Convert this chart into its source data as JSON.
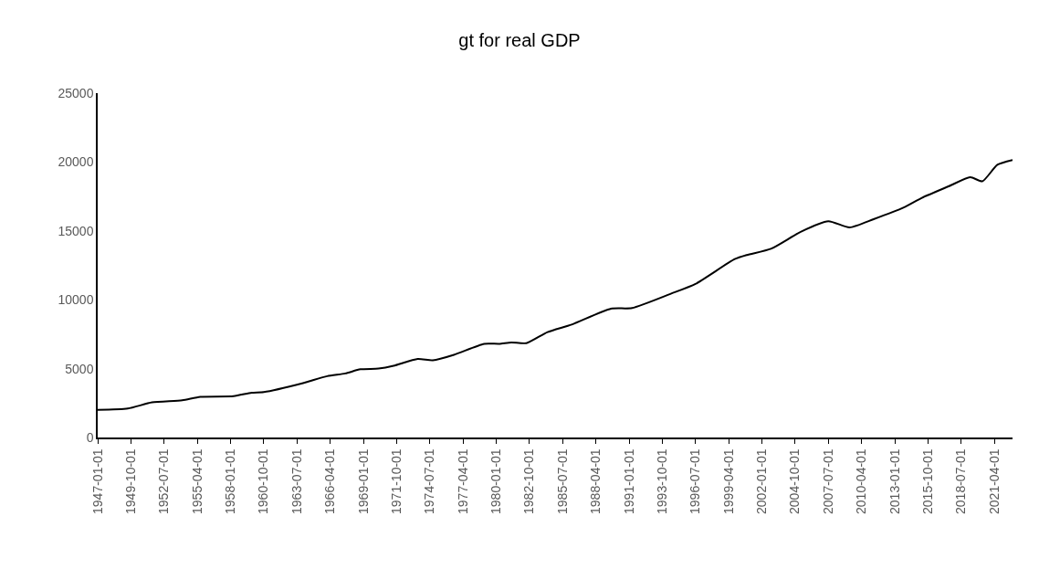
{
  "chart_data": {
    "type": "line",
    "title": "gt for real GDP",
    "x": [
      "1947-01-01",
      "1949-07-01",
      "1951-07-01",
      "1954-01-01",
      "1955-07-01",
      "1958-04-01",
      "1959-10-01",
      "1960-10-01",
      "1964-01-01",
      "1966-01-01",
      "1967-07-01",
      "1968-10-01",
      "1970-04-01",
      "1971-07-01",
      "1973-07-01",
      "1974-10-01",
      "1976-07-01",
      "1979-01-01",
      "1980-04-01",
      "1981-04-01",
      "1982-07-01",
      "1984-04-01",
      "1986-04-01",
      "1989-07-01",
      "1991-04-01",
      "1994-07-01",
      "1996-07-01",
      "1999-10-01",
      "2000-10-01",
      "2002-10-01",
      "2005-04-01",
      "2007-07-01",
      "2009-04-01",
      "2011-04-01",
      "2013-10-01",
      "2015-04-01",
      "2017-07-01",
      "2019-04-01",
      "2020-04-01",
      "2021-07-01",
      "2022-10-01"
    ],
    "series": [
      {
        "color": "#000000",
        "values": [
          2000,
          2100,
          2550,
          2700,
          2950,
          3000,
          3250,
          3300,
          3950,
          4450,
          4650,
          4950,
          5000,
          5200,
          5700,
          5600,
          6000,
          6800,
          6800,
          6900,
          6850,
          7650,
          8200,
          9350,
          9400,
          10450,
          11150,
          12950,
          13250,
          13700,
          14950,
          15700,
          15250,
          15850,
          16700,
          17400,
          18250,
          18900,
          18600,
          19800,
          20150
        ]
      }
    ],
    "xlim": [
      "1947-01-01",
      "2022-10-01"
    ],
    "xticks": [
      {
        "value": "1947-01-01",
        "label": "1947-01-01"
      },
      {
        "value": "1949-10-01",
        "label": "1949-10-01"
      },
      {
        "value": "1952-07-01",
        "label": "1952-07-01"
      },
      {
        "value": "1955-04-01",
        "label": "1955-04-01"
      },
      {
        "value": "1958-01-01",
        "label": "1958-01-01"
      },
      {
        "value": "1960-10-01",
        "label": "1960-10-01"
      },
      {
        "value": "1963-07-01",
        "label": "1963-07-01"
      },
      {
        "value": "1966-04-01",
        "label": "1966-04-01"
      },
      {
        "value": "1969-01-01",
        "label": "1969-01-01"
      },
      {
        "value": "1971-10-01",
        "label": "1971-10-01"
      },
      {
        "value": "1974-07-01",
        "label": "1974-07-01"
      },
      {
        "value": "1977-04-01",
        "label": "1977-04-01"
      },
      {
        "value": "1980-01-01",
        "label": "1980-01-01"
      },
      {
        "value": "1982-10-01",
        "label": "1982-10-01"
      },
      {
        "value": "1985-07-01",
        "label": "1985-07-01"
      },
      {
        "value": "1988-04-01",
        "label": "1988-04-01"
      },
      {
        "value": "1991-01-01",
        "label": "1991-01-01"
      },
      {
        "value": "1993-10-01",
        "label": "1993-10-01"
      },
      {
        "value": "1996-07-01",
        "label": "1996-07-01"
      },
      {
        "value": "1999-04-01",
        "label": "1999-04-01"
      },
      {
        "value": "2002-01-01",
        "label": "2002-01-01"
      },
      {
        "value": "2004-10-01",
        "label": "2004-10-01"
      },
      {
        "value": "2007-07-01",
        "label": "2007-07-01"
      },
      {
        "value": "2010-04-01",
        "label": "2010-04-01"
      },
      {
        "value": "2013-01-01",
        "label": "2013-01-01"
      },
      {
        "value": "2015-10-01",
        "label": "2015-10-01"
      },
      {
        "value": "2018-07-01",
        "label": "2018-07-01"
      },
      {
        "value": "2021-04-01",
        "label": "2021-04-01"
      }
    ],
    "ylim": [
      0,
      25000
    ],
    "yticks": [
      0,
      5000,
      10000,
      15000,
      20000,
      25000
    ],
    "marker": "none",
    "line_style": "solid"
  }
}
